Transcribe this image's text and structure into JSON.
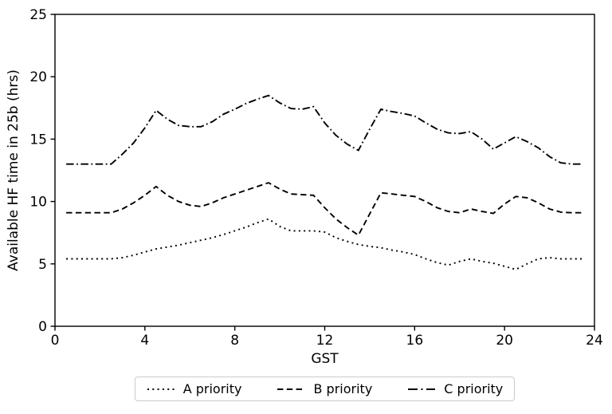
{
  "chart_data": {
    "type": "line",
    "title": "",
    "xlabel": "GST",
    "ylabel": "Available HF time in 25b (hrs)",
    "xlim": [
      0,
      24
    ],
    "ylim": [
      0,
      25
    ],
    "x_ticks": [
      0,
      4,
      8,
      12,
      16,
      20,
      24
    ],
    "y_ticks": [
      0,
      5,
      10,
      15,
      20,
      25
    ],
    "grid": false,
    "legend_position": "below-center",
    "line_color": "#000000",
    "background_color": "#ffffff",
    "x": [
      0.5,
      1,
      1.5,
      2,
      2.5,
      3,
      3.5,
      4,
      4.5,
      5,
      5.5,
      6,
      6.5,
      7,
      7.5,
      8,
      8.5,
      9,
      9.5,
      10,
      10.5,
      11,
      11.5,
      12,
      12.5,
      13,
      13.5,
      14,
      14.5,
      15,
      15.5,
      16,
      16.5,
      17,
      17.5,
      18,
      18.5,
      19,
      19.5,
      20,
      20.5,
      21,
      21.5,
      22,
      22.5,
      23,
      23.5
    ],
    "series": [
      {
        "name": "A priority",
        "style": "dotted",
        "values": [
          5.4,
          5.4,
          5.4,
          5.4,
          5.4,
          5.5,
          5.7,
          5.95,
          6.2,
          6.35,
          6.5,
          6.7,
          6.9,
          7.1,
          7.35,
          7.65,
          7.95,
          8.3,
          8.6,
          8.0,
          7.65,
          7.65,
          7.65,
          7.55,
          7.1,
          6.8,
          6.55,
          6.4,
          6.3,
          6.1,
          5.95,
          5.75,
          5.4,
          5.1,
          4.9,
          5.2,
          5.4,
          5.2,
          5.05,
          4.8,
          4.55,
          5.0,
          5.4,
          5.5,
          5.4,
          5.4,
          5.4
        ]
      },
      {
        "name": "B priority",
        "style": "dashed",
        "values": [
          9.1,
          9.1,
          9.1,
          9.1,
          9.1,
          9.4,
          9.9,
          10.5,
          11.2,
          10.5,
          10.0,
          9.7,
          9.6,
          9.9,
          10.3,
          10.6,
          10.9,
          11.2,
          11.5,
          11.0,
          10.6,
          10.55,
          10.5,
          9.5,
          8.6,
          7.9,
          7.3,
          9.0,
          10.7,
          10.6,
          10.5,
          10.4,
          10.0,
          9.5,
          9.2,
          9.1,
          9.4,
          9.2,
          9.05,
          9.8,
          10.4,
          10.3,
          9.9,
          9.4,
          9.15,
          9.1,
          9.1
        ]
      },
      {
        "name": "C priority",
        "style": "dashdot",
        "values": [
          13.0,
          13.0,
          13.0,
          13.0,
          13.0,
          13.8,
          14.7,
          15.9,
          17.3,
          16.6,
          16.1,
          16.0,
          16.0,
          16.4,
          17.0,
          17.4,
          17.85,
          18.2,
          18.5,
          17.9,
          17.45,
          17.4,
          17.6,
          16.3,
          15.3,
          14.6,
          14.1,
          15.8,
          17.4,
          17.2,
          17.05,
          16.85,
          16.3,
          15.8,
          15.5,
          15.45,
          15.6,
          15.0,
          14.2,
          14.7,
          15.2,
          14.8,
          14.3,
          13.6,
          13.1,
          13.0,
          13.0
        ]
      }
    ]
  }
}
